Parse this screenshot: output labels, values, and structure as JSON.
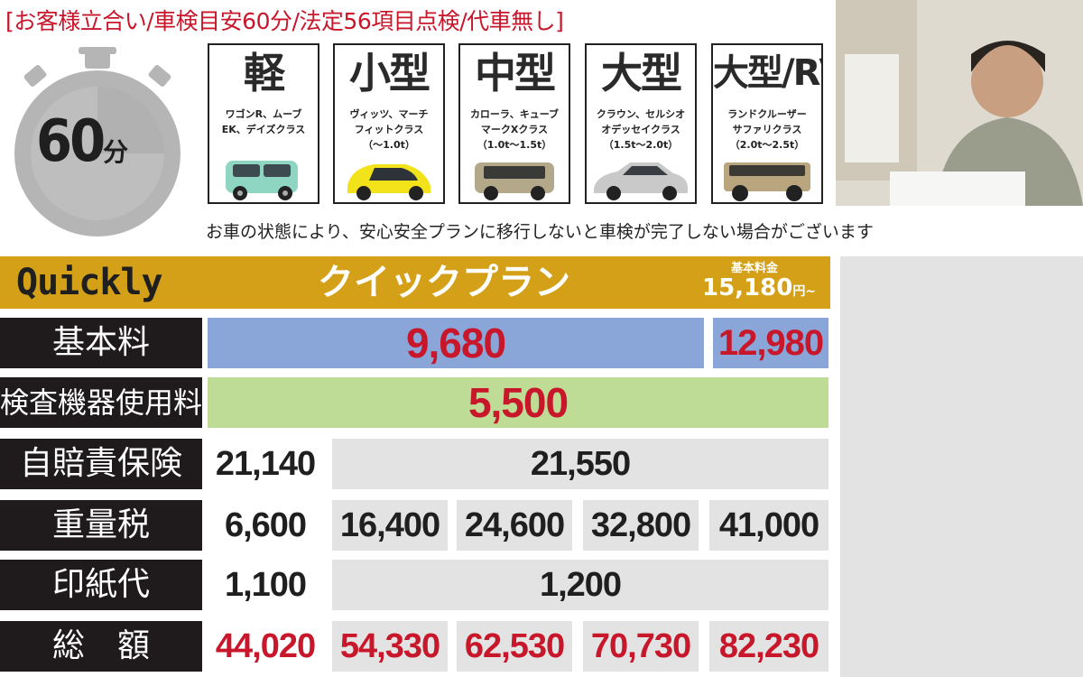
{
  "title": "[お客様立合い/車検目安60分/法定56項目点検/代車無し]",
  "timer": {
    "value": "60",
    "unit": "分"
  },
  "cars": [
    {
      "size": "軽",
      "models_line1": "ワゴンR、ムーブ",
      "models_line2": "EK、デイズクラス",
      "weight": "",
      "color": "#8fd6c2"
    },
    {
      "size": "小型",
      "models_line1": "ヴィッツ、マーチ",
      "models_line2": "フィットクラス",
      "weight": "（〜1.0t）",
      "color": "#f2e21a"
    },
    {
      "size": "中型",
      "models_line1": "カローラ、キューブ",
      "models_line2": "マークXクラス",
      "weight": "（1.0t〜1.5t）",
      "color": "#b3a98a"
    },
    {
      "size": "大型",
      "models_line1": "クラウン、セルシオ",
      "models_line2": "オデッセイクラス",
      "weight": "（1.5t〜2.0t）",
      "color": "#c9c9c9"
    },
    {
      "size": "大型/RV",
      "models_line1": "ランドクルーザー",
      "models_line2": "サファリクラス",
      "weight": "（2.0t〜2.5t）",
      "color": "#b9a67f"
    }
  ],
  "notice": "お車の状態により、安心安全プランに移行しないと車検が完了しない場合がございます",
  "plan": {
    "name_en": "Quickly",
    "name_jp": "クイックプラン",
    "base_label": "基本料金",
    "base_price": "15,180",
    "base_suffix": "円~"
  },
  "rows": {
    "basic": {
      "label": "基本料",
      "main": "9,680",
      "rv": "12,980"
    },
    "inspection": {
      "label": "検査機器使用料",
      "value": "5,500"
    },
    "insurance": {
      "label": "自賠責保険",
      "kei": "21,140",
      "others": "21,550"
    },
    "weight_tax": {
      "label": "重量税",
      "values": [
        "6,600",
        "16,400",
        "24,600",
        "32,800",
        "41,000"
      ]
    },
    "stamp": {
      "label": "印紙代",
      "kei": "1,100",
      "others": "1,200"
    },
    "total": {
      "label": "総　額",
      "values": [
        "44,020",
        "54,330",
        "62,530",
        "70,730",
        "82,230"
      ]
    }
  }
}
